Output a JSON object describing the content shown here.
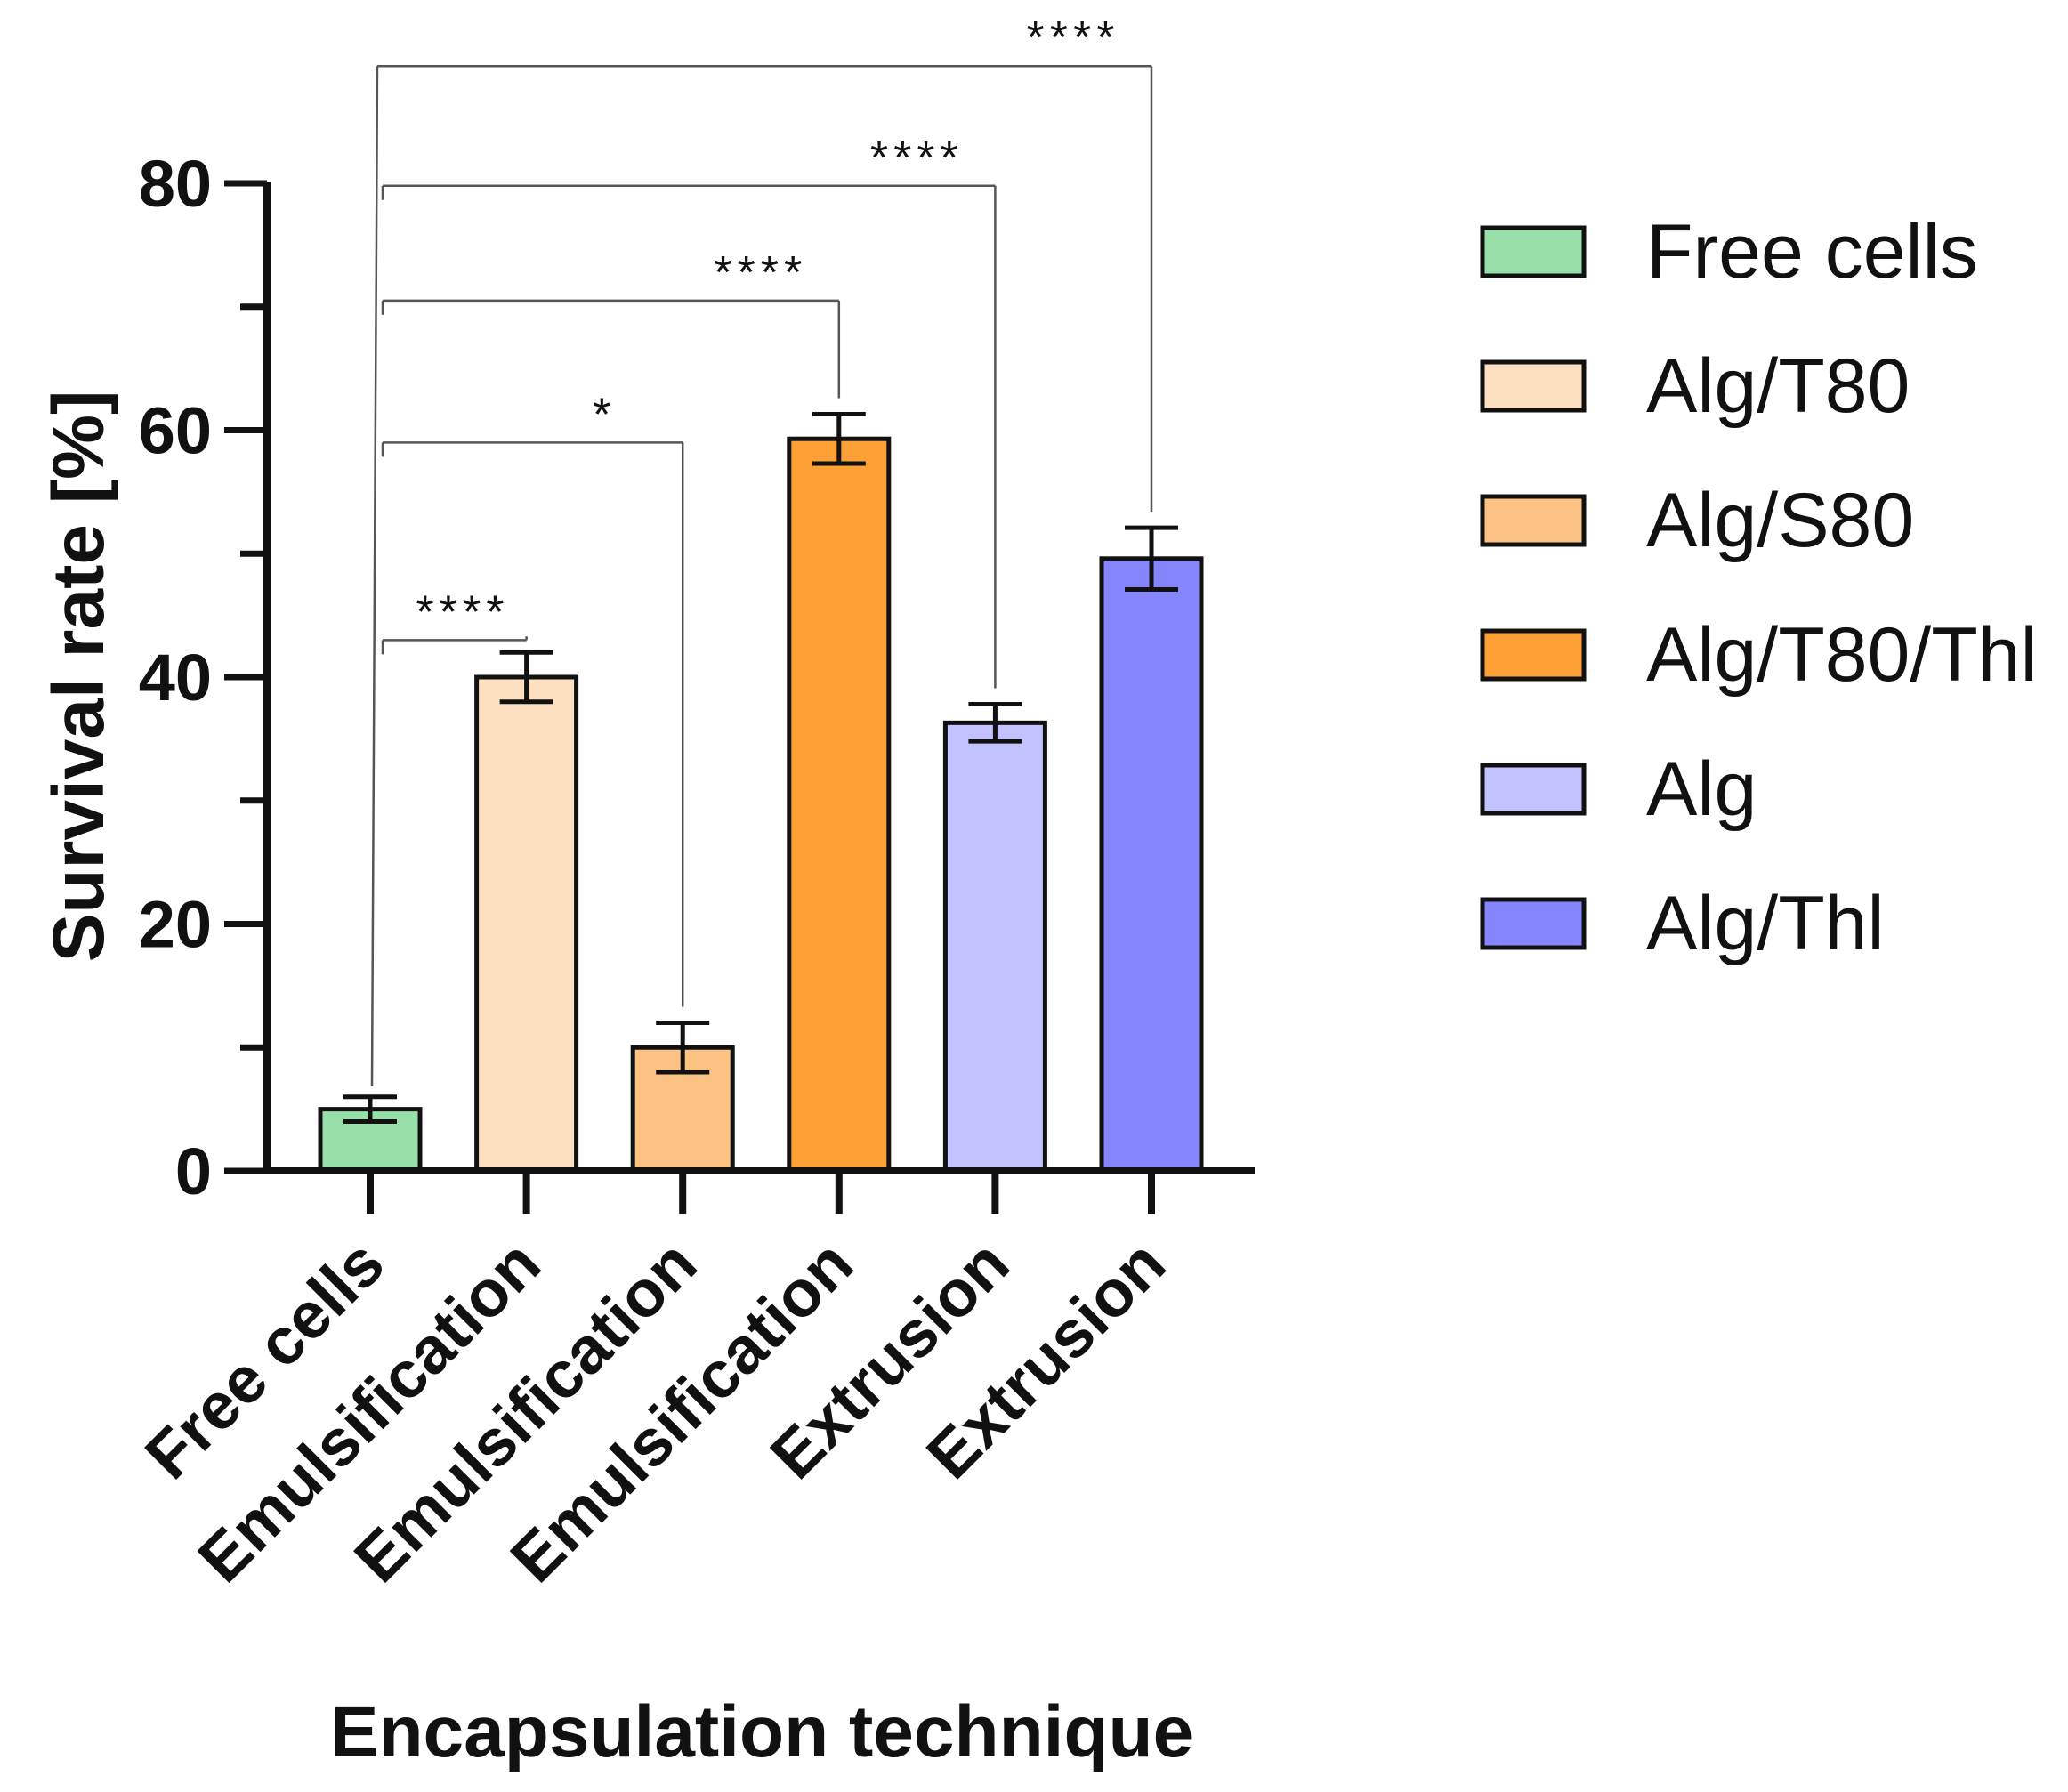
{
  "chart_data": {
    "type": "bar",
    "title": "",
    "xlabel": "Encapsulation technique",
    "ylabel": "Survival rate [%]",
    "ylim": [
      0,
      80
    ],
    "yticks": [
      0,
      20,
      40,
      60,
      80
    ],
    "categories": [
      "Free cells",
      "Emulsification",
      "Emulsification",
      "Emulsification",
      "Extrusion",
      "Extrusion"
    ],
    "series": [
      {
        "name": "Free cells",
        "color": "#99dfaa",
        "value": 5,
        "error": 1
      },
      {
        "name": "Alg/T80",
        "color": "#fde0c2",
        "value": 40,
        "error": 2
      },
      {
        "name": "Alg/S80",
        "color": "#fcc283",
        "value": 10,
        "error": 2
      },
      {
        "name": "Alg/T80/Thl",
        "color": "#fda035",
        "value": 59.3,
        "error": 2
      },
      {
        "name": "Alg",
        "color": "#c2c2fe",
        "value": 36.3,
        "error": 1.5
      },
      {
        "name": "Alg/Thl",
        "color": "#8585fe",
        "value": 49.6,
        "error": 2.5
      }
    ],
    "values": [
      5,
      40,
      10,
      59.3,
      36.3,
      49.6
    ],
    "legend": {
      "position": "right"
    },
    "significance": [
      {
        "from": 0,
        "to": 1,
        "label": "****",
        "level": 43
      },
      {
        "from": 0,
        "to": 2,
        "label": "*",
        "level": 59
      },
      {
        "from": 0,
        "to": 3,
        "label": "****",
        "level": 70.5
      },
      {
        "from": 0,
        "to": 4,
        "label": "****",
        "level": 79.8
      },
      {
        "from": 0,
        "to": 5,
        "label": "****",
        "level": 89.5
      }
    ]
  }
}
